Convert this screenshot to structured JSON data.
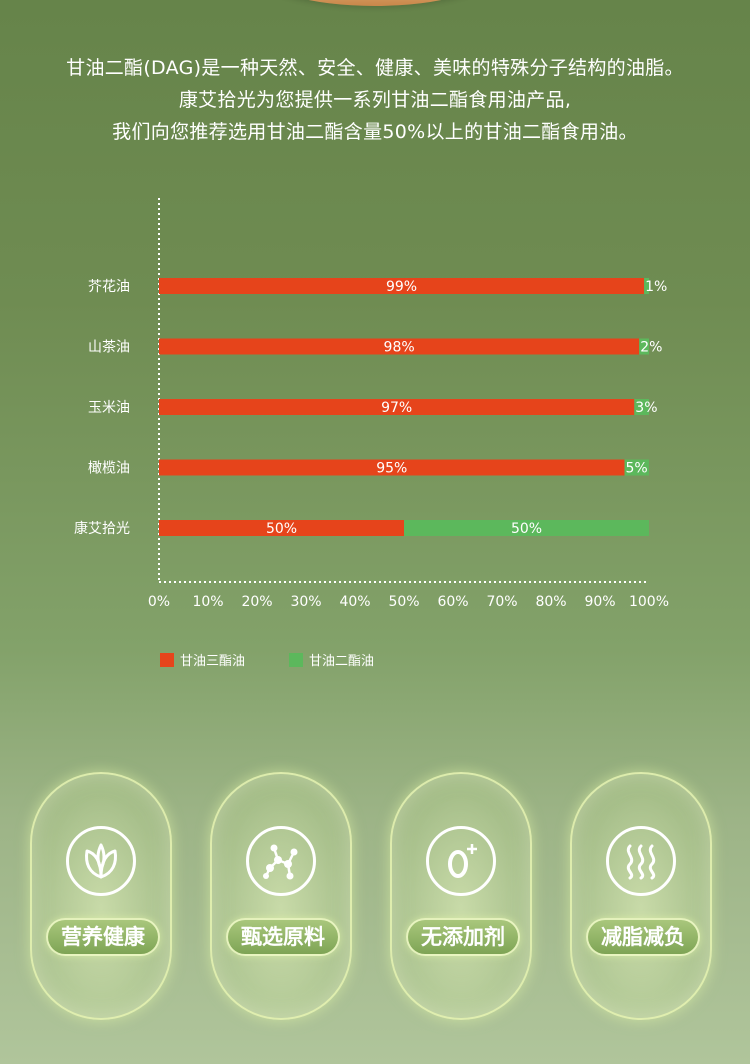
{
  "intro": {
    "line1": "甘油二酯(DAG)是一种天然、安全、健康、美味的特殊分子结构的油脂。",
    "line2": "康艾拾光为您提供一系列甘油二酯食用油产品,",
    "line3": "我们向您推荐选用甘油二酯含量50%以上的甘油二酯食用油。"
  },
  "colors": {
    "tag": "#e6441b",
    "dag": "#5cb85c",
    "axis": "#ffffff"
  },
  "chart_data": {
    "type": "bar",
    "orientation": "horizontal",
    "stacked": true,
    "categories": [
      "芥花油",
      "山茶油",
      "玉米油",
      "橄榄油",
      "康艾拾光"
    ],
    "series": [
      {
        "name": "甘油三酯油",
        "values": [
          99,
          98,
          97,
          95,
          50
        ],
        "labels": [
          "99%",
          "98%",
          "97%",
          "95%",
          "50%"
        ]
      },
      {
        "name": "甘油二酯油",
        "values": [
          1,
          2,
          3,
          5,
          50
        ],
        "labels": [
          "1%",
          "2%",
          "3%",
          "5%",
          "50%"
        ]
      }
    ],
    "xlim": [
      0,
      100
    ],
    "x_ticks": [
      "0%",
      "10%",
      "20%",
      "30%",
      "40%",
      "50%",
      "60%",
      "70%",
      "80%",
      "90%",
      "100%"
    ],
    "legend_position": "bottom-left",
    "grid": false
  },
  "features": [
    {
      "label": "营养健康",
      "icon": "leaf-icon"
    },
    {
      "label": "甄选原料",
      "icon": "molecule-icon"
    },
    {
      "label": "无添加剂",
      "icon": "zero-plus-icon"
    },
    {
      "label": "减脂减负",
      "icon": "heat-waves-icon"
    }
  ]
}
